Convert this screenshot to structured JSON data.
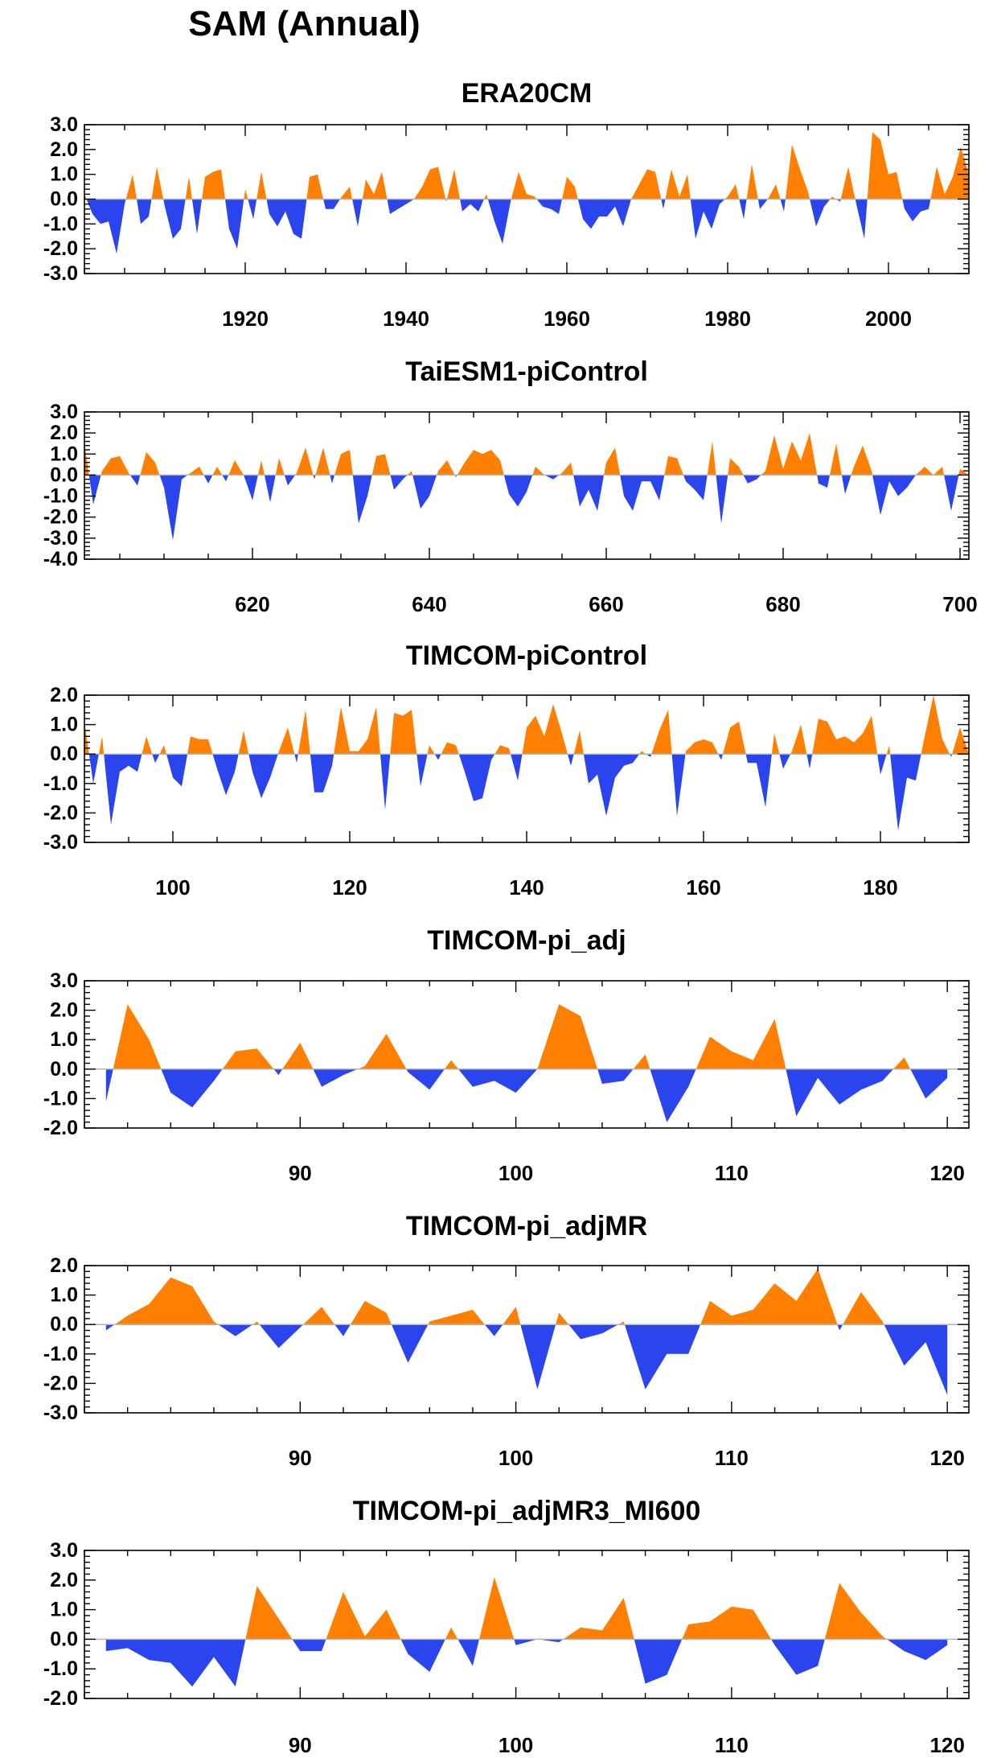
{
  "title": "SAM (Annual)",
  "colors": {
    "positive": "#ff8000",
    "negative": "#2b45ee",
    "axis": "#000000",
    "zero_line": "#b4b4b4"
  },
  "chart_data": [
    {
      "type": "area",
      "title": "ERA20CM",
      "xlabel": "",
      "ylabel": "",
      "xlim": [
        1900,
        2010
      ],
      "ylim": [
        -3.0,
        3.0
      ],
      "yticks": [
        3.0,
        2.0,
        1.0,
        0.0,
        -1.0,
        -2.0,
        -3.0
      ],
      "yticklabels": [
        "3.0",
        "2.0",
        "1.0",
        "0.0",
        "-1.0",
        "-2.0",
        "-3.0"
      ],
      "xticks": [
        1920,
        1940,
        1960,
        1980,
        2000
      ],
      "xticklabels": [
        "1920",
        "1940",
        "1960",
        "1980",
        "2000"
      ],
      "x": [
        1900,
        1901,
        1902,
        1903,
        1904,
        1905,
        1906,
        1907,
        1908,
        1909,
        1910,
        1911,
        1912,
        1913,
        1914,
        1915,
        1916,
        1917,
        1918,
        1919,
        1920,
        1921,
        1922,
        1923,
        1924,
        1925,
        1926,
        1927,
        1928,
        1929,
        1930,
        1931,
        1932,
        1933,
        1934,
        1935,
        1936,
        1937,
        1938,
        1939,
        1940,
        1941,
        1942,
        1943,
        1944,
        1945,
        1946,
        1947,
        1948,
        1949,
        1950,
        1951,
        1952,
        1953,
        1954,
        1955,
        1956,
        1957,
        1958,
        1959,
        1960,
        1961,
        1962,
        1963,
        1964,
        1965,
        1966,
        1967,
        1968,
        1969,
        1970,
        1971,
        1972,
        1973,
        1974,
        1975,
        1976,
        1977,
        1978,
        1979,
        1980,
        1981,
        1982,
        1983,
        1984,
        1985,
        1986,
        1987,
        1988,
        1989,
        1990,
        1991,
        1992,
        1993,
        1994,
        1995,
        1996,
        1997,
        1998,
        1999,
        2000,
        2001,
        2002,
        2003,
        2004,
        2005,
        2006,
        2007,
        2008,
        2009,
        2010
      ],
      "values": [
        0.2,
        -0.6,
        -1.0,
        -0.9,
        -2.2,
        -0.2,
        1.0,
        -1.0,
        -0.7,
        1.3,
        -0.3,
        -1.6,
        -1.2,
        0.9,
        -1.4,
        0.9,
        1.1,
        1.2,
        -1.2,
        -2.0,
        0.4,
        -0.8,
        1.1,
        -0.6,
        -1.1,
        -0.5,
        -1.4,
        -1.6,
        0.9,
        1.0,
        -0.4,
        -0.4,
        0.1,
        0.5,
        -1.1,
        0.8,
        0.2,
        1.1,
        -0.6,
        -0.4,
        -0.2,
        0.0,
        0.5,
        1.2,
        1.3,
        -0.1,
        1.2,
        -0.5,
        -0.2,
        -0.5,
        0.2,
        -0.9,
        -1.8,
        -0.1,
        1.1,
        0.2,
        0.1,
        -0.3,
        -0.4,
        -0.6,
        0.9,
        0.5,
        -0.8,
        -1.2,
        -0.7,
        -0.7,
        -0.3,
        -1.1,
        0.0,
        0.6,
        1.2,
        1.1,
        -0.4,
        1.2,
        0.1,
        1.0,
        -1.6,
        -0.5,
        -1.2,
        -0.2,
        0.1,
        0.6,
        -0.8,
        1.4,
        -0.4,
        0.0,
        0.6,
        -0.5,
        2.2,
        1.2,
        0.3,
        -1.1,
        -0.3,
        0.1,
        -0.1,
        1.3,
        -0.2,
        -1.6,
        2.7,
        2.4,
        1.0,
        1.1,
        -0.4,
        -0.9,
        -0.5,
        -0.4,
        1.3,
        0.2,
        0.9,
        2.1,
        1.0
      ]
    },
    {
      "type": "area",
      "title": "TaiESM1-piControl",
      "xlabel": "",
      "ylabel": "",
      "xlim": [
        601,
        701
      ],
      "ylim": [
        -4.0,
        3.0
      ],
      "yticks": [
        3.0,
        2.0,
        1.0,
        0.0,
        -1.0,
        -2.0,
        -3.0,
        -4.0
      ],
      "yticklabels": [
        "3.0",
        "2.0",
        "1.0",
        "0.0",
        "-1.0",
        "-2.0",
        "-3.0",
        "-4.0"
      ],
      "xticks": [
        620,
        640,
        660,
        680,
        700
      ],
      "xticklabels": [
        "620",
        "640",
        "660",
        "680",
        "700"
      ],
      "x": [
        601,
        602,
        603,
        604,
        605,
        606,
        607,
        608,
        609,
        610,
        611,
        612,
        613,
        614,
        615,
        616,
        617,
        618,
        619,
        620,
        621,
        622,
        623,
        624,
        625,
        626,
        627,
        628,
        629,
        630,
        631,
        632,
        633,
        634,
        635,
        636,
        637,
        638,
        639,
        640,
        641,
        642,
        643,
        644,
        645,
        646,
        647,
        648,
        649,
        650,
        651,
        652,
        653,
        654,
        655,
        656,
        657,
        658,
        659,
        660,
        661,
        662,
        663,
        664,
        665,
        666,
        667,
        668,
        669,
        670,
        671,
        672,
        673,
        674,
        675,
        676,
        677,
        678,
        679,
        680,
        681,
        682,
        683,
        684,
        685,
        686,
        687,
        688,
        689,
        690,
        691,
        692,
        693,
        694,
        695,
        696,
        697,
        698,
        699,
        700,
        701
      ],
      "values": [
        1.5,
        -1.4,
        0.2,
        0.8,
        0.9,
        0.1,
        -0.5,
        1.1,
        0.6,
        -0.6,
        -3.1,
        -0.2,
        0.1,
        0.4,
        -0.4,
        0.4,
        -0.3,
        0.7,
        0.0,
        -1.2,
        0.7,
        -1.3,
        0.8,
        -0.5,
        0.1,
        1.3,
        -0.2,
        1.3,
        -0.4,
        1.0,
        1.2,
        -2.3,
        -1.0,
        0.9,
        1.0,
        -0.7,
        -0.2,
        0.2,
        -1.6,
        -1.0,
        0.2,
        0.7,
        -0.1,
        0.6,
        1.2,
        1.0,
        1.2,
        0.7,
        -0.9,
        -1.5,
        -0.8,
        0.4,
        0.0,
        -0.2,
        0.1,
        0.6,
        -1.5,
        -0.7,
        -1.7,
        0.6,
        1.3,
        -1.0,
        -1.7,
        -0.3,
        -0.3,
        -1.2,
        0.9,
        0.8,
        -0.3,
        -0.7,
        -1.2,
        1.6,
        -2.3,
        0.8,
        0.4,
        -0.4,
        -0.2,
        0.2,
        1.9,
        0.3,
        1.6,
        0.7,
        2.0,
        -0.4,
        -0.6,
        1.5,
        -0.9,
        0.4,
        1.4,
        0.2,
        -1.9,
        -0.3,
        -1.0,
        -0.6,
        0.0,
        0.4,
        0.0,
        0.4,
        -1.7,
        0.3,
        0.0
      ]
    },
    {
      "type": "area",
      "title": "TIMCOM-piControl",
      "xlabel": "",
      "ylabel": "",
      "xlim": [
        90,
        190
      ],
      "ylim": [
        -3.0,
        2.0
      ],
      "yticks": [
        2.0,
        1.0,
        0.0,
        -1.0,
        -2.0,
        -3.0
      ],
      "yticklabels": [
        "2.0",
        "1.0",
        "0.0",
        "-1.0",
        "-2.0",
        "-3.0"
      ],
      "xticks": [
        100,
        120,
        140,
        160,
        180
      ],
      "xticklabels": [
        "100",
        "120",
        "140",
        "160",
        "180"
      ],
      "x": [
        90,
        91,
        92,
        93,
        94,
        95,
        96,
        97,
        98,
        99,
        100,
        101,
        102,
        103,
        104,
        105,
        106,
        107,
        108,
        109,
        110,
        111,
        112,
        113,
        114,
        115,
        116,
        117,
        118,
        119,
        120,
        121,
        122,
        123,
        124,
        125,
        126,
        127,
        128,
        129,
        130,
        131,
        132,
        133,
        134,
        135,
        136,
        137,
        138,
        139,
        140,
        141,
        142,
        143,
        144,
        145,
        146,
        147,
        148,
        149,
        150,
        151,
        152,
        153,
        154,
        155,
        156,
        157,
        158,
        159,
        160,
        161,
        162,
        163,
        164,
        165,
        166,
        167,
        168,
        169,
        170,
        171,
        172,
        173,
        174,
        175,
        176,
        177,
        178,
        179,
        180,
        181,
        182,
        183,
        184,
        185,
        186,
        187,
        188,
        189,
        190
      ],
      "values": [
        1.1,
        -1.0,
        0.6,
        -2.4,
        -0.6,
        -0.4,
        -0.6,
        0.6,
        -0.3,
        0.3,
        -0.8,
        -1.1,
        0.6,
        0.5,
        0.5,
        -0.5,
        -1.4,
        -0.6,
        0.8,
        -0.6,
        -1.5,
        -0.8,
        0.1,
        0.9,
        -0.3,
        1.5,
        -1.3,
        -1.3,
        -0.4,
        1.6,
        0.1,
        0.1,
        0.5,
        1.6,
        -1.9,
        1.4,
        1.3,
        1.5,
        -1.1,
        0.3,
        -0.2,
        0.4,
        0.3,
        -0.6,
        -1.6,
        -1.5,
        -0.2,
        0.3,
        0.2,
        -0.9,
        0.9,
        1.3,
        0.6,
        1.7,
        0.7,
        -0.4,
        0.8,
        -1.0,
        -0.7,
        -2.1,
        -0.8,
        -0.4,
        -0.3,
        0.1,
        -0.1,
        0.8,
        1.5,
        -2.1,
        0.1,
        0.4,
        0.5,
        0.4,
        -0.2,
        0.9,
        1.1,
        -0.3,
        -0.3,
        -1.8,
        0.7,
        -0.5,
        0.1,
        1.0,
        -0.5,
        1.2,
        1.1,
        0.5,
        0.6,
        0.4,
        0.7,
        1.3,
        -0.7,
        0.3,
        -2.6,
        -0.8,
        -0.9,
        0.6,
        2.0,
        0.5,
        -0.1,
        0.9,
        0.0
      ]
    },
    {
      "type": "area",
      "title": "TIMCOM-pi_adj",
      "xlabel": "",
      "ylabel": "",
      "xlim": [
        80,
        121
      ],
      "ylim": [
        -2.0,
        3.0
      ],
      "yticks": [
        3.0,
        2.0,
        1.0,
        0.0,
        -1.0,
        -2.0
      ],
      "yticklabels": [
        "3.0",
        "2.0",
        "1.0",
        "0.0",
        "-1.0",
        "-2.0"
      ],
      "xticks": [
        90,
        100,
        110,
        120
      ],
      "xticklabels": [
        "90",
        "100",
        "110",
        "120"
      ],
      "x": [
        81,
        82,
        83,
        84,
        85,
        86,
        87,
        88,
        89,
        90,
        91,
        92,
        93,
        94,
        95,
        96,
        97,
        98,
        99,
        100,
        101,
        102,
        103,
        104,
        105,
        106,
        107,
        108,
        109,
        110,
        111,
        112,
        113,
        114,
        115,
        116,
        117,
        118,
        119,
        120
      ],
      "values": [
        -1.1,
        2.2,
        1.0,
        -0.8,
        -1.3,
        -0.4,
        0.6,
        0.7,
        -0.2,
        0.9,
        -0.6,
        -0.2,
        0.1,
        1.2,
        -0.1,
        -0.7,
        0.3,
        -0.6,
        -0.4,
        -0.8,
        0.0,
        2.2,
        1.8,
        -0.5,
        -0.4,
        0.5,
        -1.8,
        -0.6,
        1.1,
        0.6,
        0.3,
        1.7,
        -1.6,
        -0.3,
        -1.2,
        -0.7,
        -0.4,
        0.4,
        -1.0,
        -0.3
      ]
    },
    {
      "type": "area",
      "title": "TIMCOM-pi_adjMR",
      "xlabel": "",
      "ylabel": "",
      "xlim": [
        80,
        121
      ],
      "ylim": [
        -3.0,
        2.0
      ],
      "yticks": [
        2.0,
        1.0,
        0.0,
        -1.0,
        -2.0,
        -3.0
      ],
      "yticklabels": [
        "2.0",
        "1.0",
        "0.0",
        "-1.0",
        "-2.0",
        "-3.0"
      ],
      "xticks": [
        90,
        100,
        110,
        120
      ],
      "xticklabels": [
        "90",
        "100",
        "110",
        "120"
      ],
      "x": [
        81,
        82,
        83,
        84,
        85,
        86,
        87,
        88,
        89,
        90,
        91,
        92,
        93,
        94,
        95,
        96,
        97,
        98,
        99,
        100,
        101,
        102,
        103,
        104,
        105,
        106,
        107,
        108,
        109,
        110,
        111,
        112,
        113,
        114,
        115,
        116,
        117,
        118,
        119,
        120
      ],
      "values": [
        -0.2,
        0.3,
        0.7,
        1.6,
        1.3,
        0.1,
        -0.4,
        0.1,
        -0.8,
        -0.1,
        0.6,
        -0.4,
        0.8,
        0.4,
        -1.3,
        0.1,
        0.3,
        0.5,
        -0.4,
        0.6,
        -2.2,
        0.4,
        -0.5,
        -0.3,
        0.1,
        -2.2,
        -1.0,
        -1.0,
        0.8,
        0.3,
        0.5,
        1.4,
        0.8,
        1.9,
        -0.2,
        1.1,
        0.1,
        -1.4,
        -0.6,
        -2.4
      ]
    },
    {
      "type": "area",
      "title": "TIMCOM-pi_adjMR3_MI600",
      "xlabel": "",
      "ylabel": "",
      "xlim": [
        80,
        121
      ],
      "ylim": [
        -2.0,
        3.0
      ],
      "yticks": [
        3.0,
        2.0,
        1.0,
        0.0,
        -1.0,
        -2.0
      ],
      "yticklabels": [
        "3.0",
        "2.0",
        "1.0",
        "0.0",
        "-1.0",
        "-2.0"
      ],
      "xticks": [
        90,
        100,
        110,
        120
      ],
      "xticklabels": [
        "90",
        "100",
        "110",
        "120"
      ],
      "x": [
        81,
        82,
        83,
        84,
        85,
        86,
        87,
        88,
        89,
        90,
        91,
        92,
        93,
        94,
        95,
        96,
        97,
        98,
        99,
        100,
        101,
        102,
        103,
        104,
        105,
        106,
        107,
        108,
        109,
        110,
        111,
        112,
        113,
        114,
        115,
        116,
        117,
        118,
        119,
        120
      ],
      "values": [
        -0.4,
        -0.3,
        -0.7,
        -0.8,
        -1.6,
        -0.6,
        -1.6,
        1.8,
        0.7,
        -0.4,
        -0.4,
        1.6,
        0.1,
        1.0,
        -0.5,
        -1.1,
        0.4,
        -0.9,
        2.1,
        -0.2,
        0.0,
        -0.1,
        0.4,
        0.3,
        1.4,
        -1.5,
        -1.2,
        0.5,
        0.6,
        1.1,
        1.0,
        -0.2,
        -1.2,
        -0.9,
        1.9,
        0.9,
        0.1,
        -0.4,
        -0.7,
        -0.2
      ]
    }
  ]
}
